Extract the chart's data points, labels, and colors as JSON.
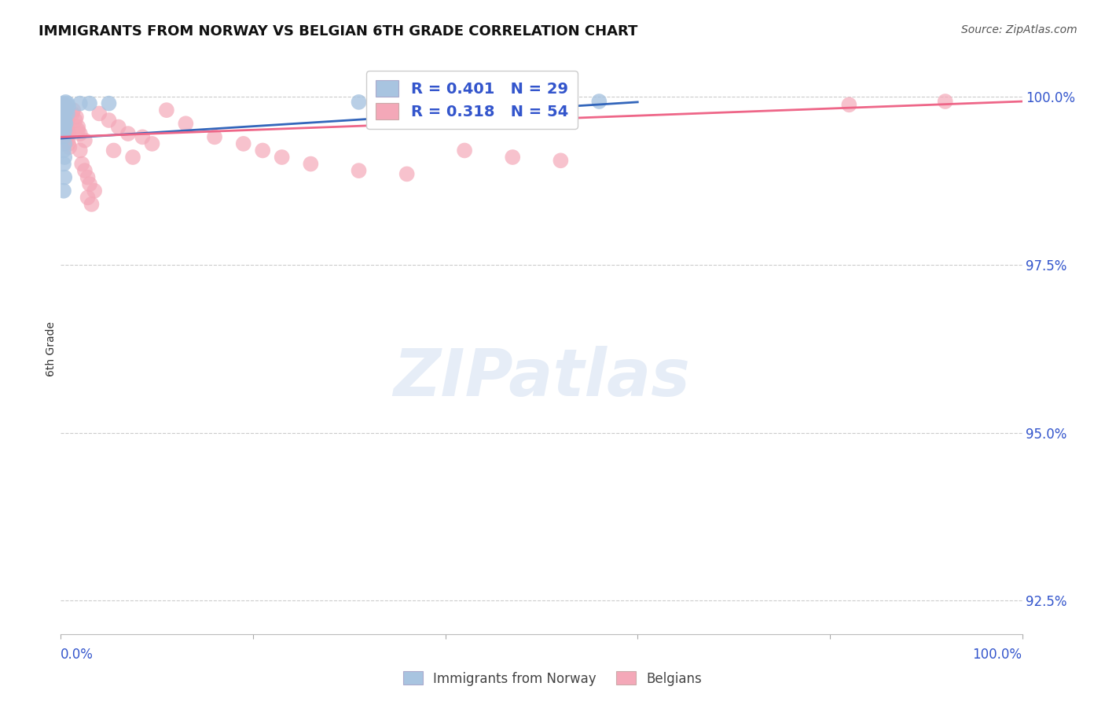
{
  "title": "IMMIGRANTS FROM NORWAY VS BELGIAN 6TH GRADE CORRELATION CHART",
  "source": "Source: ZipAtlas.com",
  "ylabel": "6th Grade",
  "ylabel_right_labels": [
    "100.0%",
    "97.5%",
    "95.0%",
    "92.5%"
  ],
  "ylabel_right_values": [
    1.0,
    0.975,
    0.95,
    0.925
  ],
  "legend_blue_r": "R = 0.401",
  "legend_blue_n": "N = 29",
  "legend_pink_r": "R = 0.318",
  "legend_pink_n": "N = 54",
  "legend_label1": "Immigrants from Norway",
  "legend_label2": "Belgians",
  "blue_color": "#A8C4E0",
  "pink_color": "#F4A8B8",
  "blue_line_color": "#3366BB",
  "pink_line_color": "#EE6688",
  "legend_text_color": "#3355CC",
  "title_color": "#111111",
  "blue_points": [
    [
      0.002,
      0.9985
    ],
    [
      0.003,
      0.999
    ],
    [
      0.004,
      0.9988
    ],
    [
      0.005,
      0.9992
    ],
    [
      0.006,
      0.9987
    ],
    [
      0.007,
      0.999
    ],
    [
      0.008,
      0.9985
    ],
    [
      0.004,
      0.9983
    ],
    [
      0.003,
      0.998
    ],
    [
      0.005,
      0.9978
    ],
    [
      0.006,
      0.9982
    ],
    [
      0.007,
      0.9975
    ],
    [
      0.003,
      0.997
    ],
    [
      0.004,
      0.9965
    ],
    [
      0.005,
      0.996
    ],
    [
      0.003,
      0.9955
    ],
    [
      0.004,
      0.995
    ],
    [
      0.003,
      0.994
    ],
    [
      0.004,
      0.993
    ],
    [
      0.003,
      0.992
    ],
    [
      0.004,
      0.991
    ],
    [
      0.003,
      0.99
    ],
    [
      0.004,
      0.988
    ],
    [
      0.003,
      0.986
    ],
    [
      0.02,
      0.999
    ],
    [
      0.03,
      0.999
    ],
    [
      0.05,
      0.999
    ],
    [
      0.31,
      0.9992
    ],
    [
      0.56,
      0.9993
    ]
  ],
  "pink_points": [
    [
      0.003,
      0.9988
    ],
    [
      0.005,
      0.9985
    ],
    [
      0.004,
      0.9982
    ],
    [
      0.006,
      0.998
    ],
    [
      0.005,
      0.9975
    ],
    [
      0.004,
      0.997
    ],
    [
      0.006,
      0.9968
    ],
    [
      0.007,
      0.9965
    ],
    [
      0.005,
      0.996
    ],
    [
      0.006,
      0.9955
    ],
    [
      0.007,
      0.995
    ],
    [
      0.008,
      0.9945
    ],
    [
      0.006,
      0.994
    ],
    [
      0.007,
      0.9935
    ],
    [
      0.008,
      0.993
    ],
    [
      0.009,
      0.9925
    ],
    [
      0.012,
      0.9975
    ],
    [
      0.015,
      0.9965
    ],
    [
      0.018,
      0.9955
    ],
    [
      0.02,
      0.9945
    ],
    [
      0.025,
      0.9935
    ],
    [
      0.013,
      0.998
    ],
    [
      0.016,
      0.997
    ],
    [
      0.018,
      0.995
    ],
    [
      0.02,
      0.992
    ],
    [
      0.022,
      0.99
    ],
    [
      0.025,
      0.989
    ],
    [
      0.028,
      0.988
    ],
    [
      0.03,
      0.987
    ],
    [
      0.035,
      0.986
    ],
    [
      0.028,
      0.985
    ],
    [
      0.032,
      0.984
    ],
    [
      0.04,
      0.9975
    ],
    [
      0.05,
      0.9965
    ],
    [
      0.06,
      0.9955
    ],
    [
      0.07,
      0.9945
    ],
    [
      0.055,
      0.992
    ],
    [
      0.075,
      0.991
    ],
    [
      0.085,
      0.994
    ],
    [
      0.095,
      0.993
    ],
    [
      0.11,
      0.998
    ],
    [
      0.13,
      0.996
    ],
    [
      0.16,
      0.994
    ],
    [
      0.19,
      0.993
    ],
    [
      0.21,
      0.992
    ],
    [
      0.23,
      0.991
    ],
    [
      0.26,
      0.99
    ],
    [
      0.31,
      0.989
    ],
    [
      0.36,
      0.9885
    ],
    [
      0.42,
      0.992
    ],
    [
      0.47,
      0.991
    ],
    [
      0.52,
      0.9905
    ],
    [
      0.82,
      0.9988
    ],
    [
      0.92,
      0.9993
    ]
  ],
  "xlim": [
    0.0,
    1.0
  ],
  "ylim": [
    0.92,
    1.005
  ],
  "grid_yticks": [
    1.0,
    0.975,
    0.95,
    0.925
  ],
  "bg_color": "#FFFFFF",
  "grid_color": "#CCCCCC"
}
